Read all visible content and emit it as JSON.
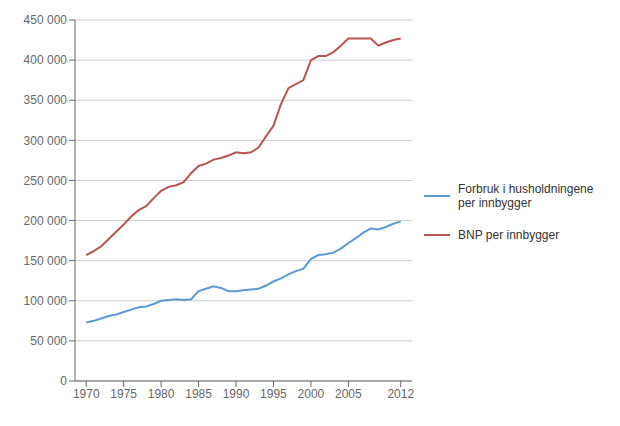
{
  "chart_data": {
    "type": "line",
    "x": [
      1970,
      1971,
      1972,
      1973,
      1974,
      1975,
      1976,
      1977,
      1978,
      1979,
      1980,
      1981,
      1982,
      1983,
      1984,
      1985,
      1986,
      1987,
      1988,
      1989,
      1990,
      1991,
      1992,
      1993,
      1994,
      1995,
      1996,
      1997,
      1998,
      1999,
      2000,
      2001,
      2002,
      2003,
      2004,
      2005,
      2006,
      2007,
      2008,
      2009,
      2010,
      2011,
      2012
    ],
    "series": [
      {
        "name": "Forbruk i husholdningene\nper innbygger",
        "color": "#5b9bd5",
        "values": [
          73000,
          75000,
          78000,
          81000,
          83000,
          86000,
          89000,
          92000,
          93000,
          96000,
          100000,
          101000,
          102000,
          101000,
          102000,
          112000,
          115000,
          118000,
          116000,
          112000,
          112000,
          113000,
          114000,
          115000,
          119000,
          124000,
          128000,
          133000,
          137000,
          140000,
          152000,
          157000,
          158000,
          160000,
          165000,
          172000,
          178000,
          185000,
          190000,
          189000,
          192000,
          196000,
          199000
        ]
      },
      {
        "name": "BNP per innbygger",
        "color": "#b85450",
        "values": [
          157000,
          162000,
          168000,
          177000,
          186000,
          195000,
          205000,
          213000,
          218000,
          228000,
          237000,
          242000,
          244000,
          248000,
          259000,
          268000,
          271000,
          276000,
          278000,
          281000,
          285000,
          284000,
          285000,
          291000,
          305000,
          318000,
          345000,
          365000,
          370000,
          375000,
          400000,
          405000,
          405000,
          410000,
          418000,
          427000,
          427000,
          427000,
          427000,
          418000,
          422000,
          425000,
          427000
        ]
      }
    ],
    "xlim": [
      1968.5,
      2013.5
    ],
    "xticks": [
      1970,
      1975,
      1980,
      1985,
      1990,
      1995,
      2000,
      2005,
      2012
    ],
    "ylim": [
      0,
      450000
    ],
    "yticks": [
      0,
      {
        "value": 50000,
        "label": "50 000"
      },
      {
        "value": 100000,
        "label": "100 000"
      },
      {
        "value": 150000,
        "label": "150 000"
      },
      {
        "value": 200000,
        "label": "200 000"
      },
      {
        "value": 250000,
        "label": "250 000"
      },
      {
        "value": 300000,
        "label": "300 000"
      },
      {
        "value": 350000,
        "label": "350 000"
      },
      {
        "value": 400000,
        "label": "400 000"
      },
      {
        "value": 450000,
        "label": "450 000"
      }
    ],
    "grid": "y",
    "legend": "right"
  }
}
